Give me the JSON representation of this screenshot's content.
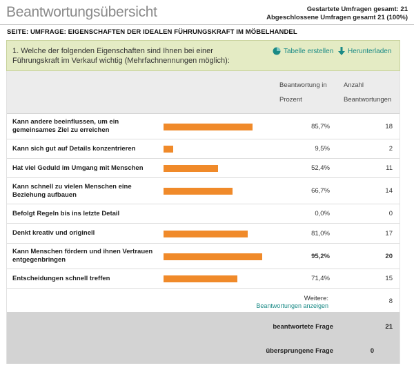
{
  "header": {
    "title": "Beantwortungsübersicht",
    "started_total": "Gestartete Umfragen gesamt: 21",
    "completed_total": "Abgeschlossene Umfragen gesamt 21  (100%)"
  },
  "page_heading": "SEITE: UMFRAGE: EIGENSCHAFTEN DER IDEALEN FÜHRUNGSKRAFT IM MÖBELHANDEL",
  "question": {
    "text": "1. Welche der folgenden Eigenschaften sind Ihnen bei einer Führungskraft im Verkauf wichtig (Mehrfachnennungen möglich):",
    "create_table_label": "Tabelle erstellen",
    "download_label": "Herunterladen"
  },
  "columns": {
    "percent": "Beantwortung in Prozent",
    "count": "Anzahl Beantwortungen"
  },
  "rows": [
    {
      "label": "Kann andere beeinflussen, um ein gemeinsames Ziel zu erreichen",
      "percent": "85,7%",
      "value": 85.7,
      "count": "18"
    },
    {
      "label": "Kann sich gut auf Details konzentrieren",
      "percent": "9,5%",
      "value": 9.5,
      "count": "2"
    },
    {
      "label": "Hat viel Geduld im Umgang mit Menschen",
      "percent": "52,4%",
      "value": 52.4,
      "count": "11"
    },
    {
      "label": "Kann schnell zu vielen Menschen eine Beziehung aufbauen",
      "percent": "66,7%",
      "value": 66.7,
      "count": "14"
    },
    {
      "label": "Befolgt Regeln bis ins letzte Detail",
      "percent": "0,0%",
      "value": 0.0,
      "count": "0"
    },
    {
      "label": "Denkt kreativ und originell",
      "percent": "81,0%",
      "value": 81.0,
      "count": "17"
    },
    {
      "label": "Kann Menschen fördern und ihnen Vertrauen entgegenbringen",
      "percent": "95,2%",
      "value": 95.2,
      "count": "20"
    },
    {
      "label": "Entscheidungen schnell treffen",
      "percent": "71,4%",
      "value": 71.4,
      "count": "15"
    }
  ],
  "other": {
    "label": "Weitere:",
    "link": "Beantwortungen anzeigen",
    "count": "8"
  },
  "summary": {
    "answered_label": "beantwortete Frage",
    "answered_value": "21",
    "skipped_label": "übersprungene Frage",
    "skipped_value": "0"
  },
  "colors": {
    "bar": "#f08a2a",
    "accent": "#1a8a86",
    "question_bg": "#e4ebc4"
  }
}
